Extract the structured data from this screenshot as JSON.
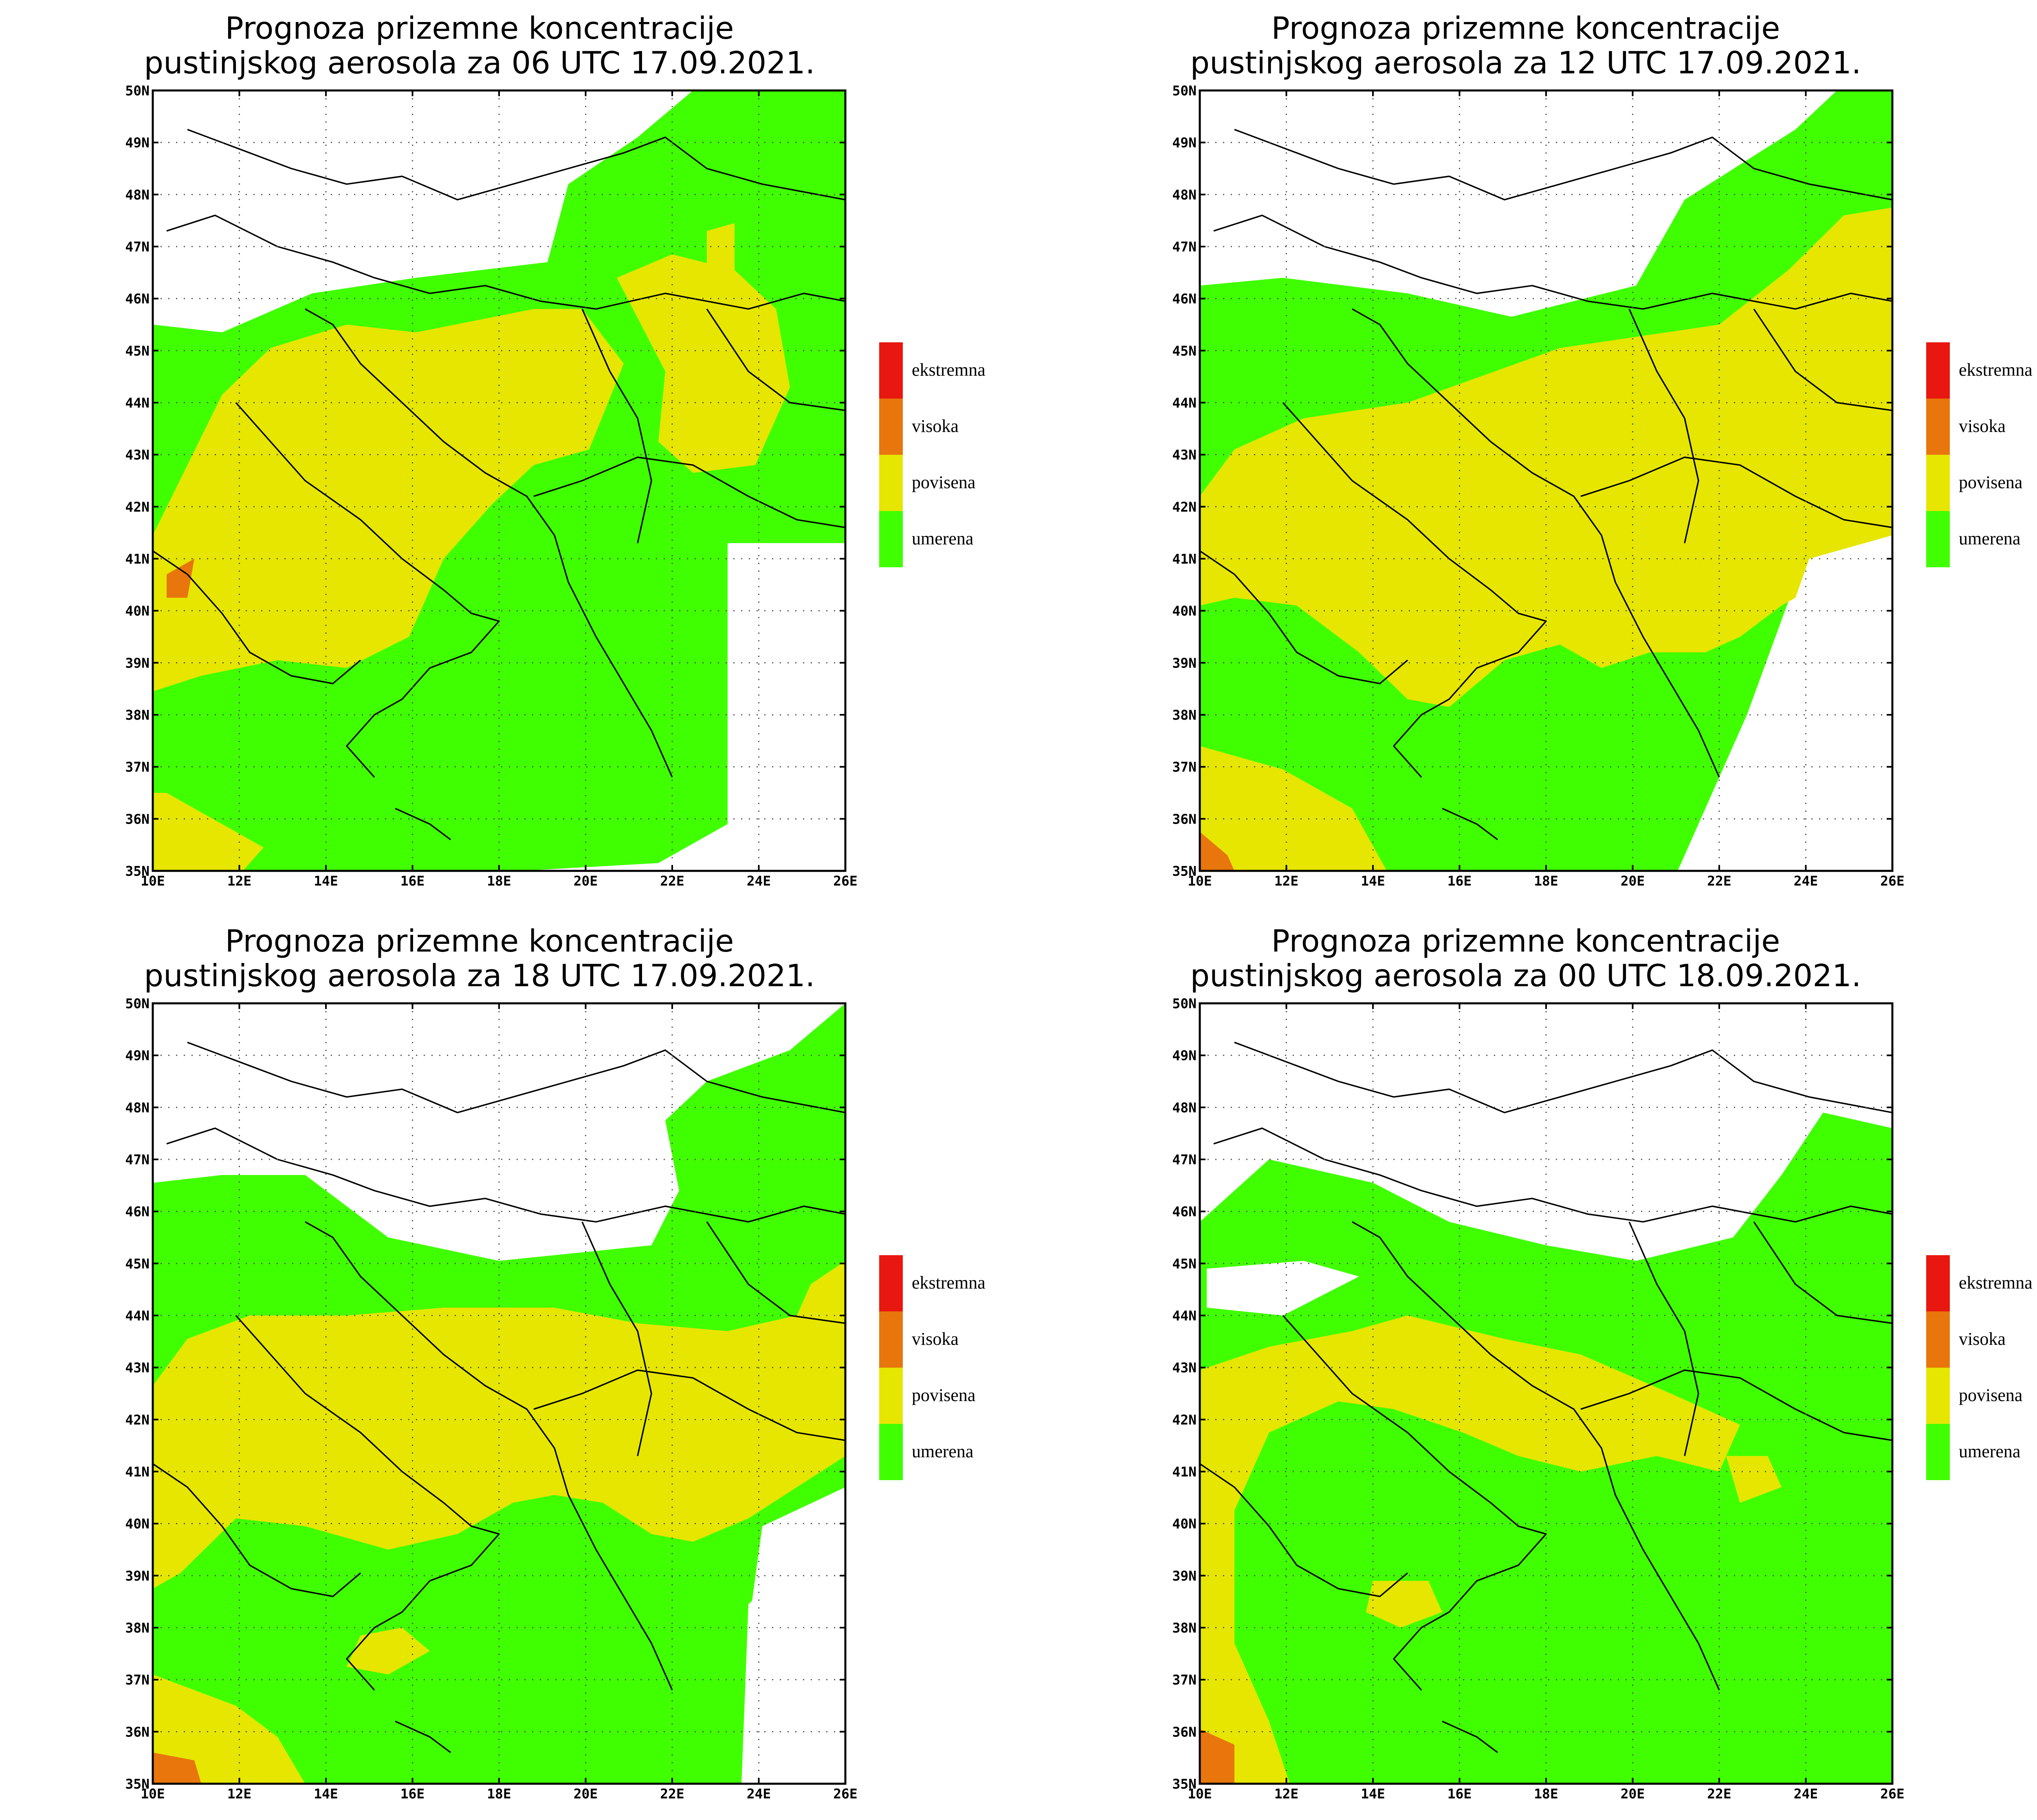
{
  "figure": {
    "colors": {
      "umerena": "#40ff00",
      "povisena": "#e6e600",
      "visoka": "#e8760c",
      "ekstremna": "#e8170f",
      "background": "#ffffff"
    },
    "legend": [
      {
        "label": "ekstremna",
        "color": "#e8170f"
      },
      {
        "label": "visoka",
        "color": "#e8760c"
      },
      {
        "label": "povisena",
        "color": "#e6e600"
      },
      {
        "label": "umerena",
        "color": "#40ff00"
      }
    ],
    "lon_ticks": [
      "10E",
      "12E",
      "14E",
      "16E",
      "18E",
      "20E",
      "22E",
      "24E",
      "26E"
    ],
    "lat_ticks": [
      "35N",
      "36N",
      "37N",
      "38N",
      "39N",
      "40N",
      "41N",
      "42N",
      "43N",
      "44N",
      "45N",
      "46N",
      "47N",
      "48N",
      "49N",
      "50N"
    ],
    "panels": [
      {
        "id": "p06",
        "title_line1": "Prognoza prizemne koncentracije",
        "title_line2": "pustinjskog aerosola za 06 UTC 17.09.2021."
      },
      {
        "id": "p12",
        "title_line1": "Prognoza prizemne koncentracije",
        "title_line2": "pustinjskog aerosola za 12 UTC 17.09.2021."
      },
      {
        "id": "p18",
        "title_line1": "Prognoza prizemne koncentracije",
        "title_line2": "pustinjskog aerosola za 18 UTC 17.09.2021."
      },
      {
        "id": "p00",
        "title_line1": "Prognoza prizemne koncentracije",
        "title_line2": "pustinjskog aerosola za 00 UTC 18.09.2021."
      }
    ]
  },
  "chart_data": {
    "type": "map",
    "extent": {
      "lon": [
        10,
        26
      ],
      "lat": [
        35,
        50
      ]
    },
    "categories": [
      "umerena",
      "povisena",
      "visoka",
      "ekstremna"
    ]
  }
}
